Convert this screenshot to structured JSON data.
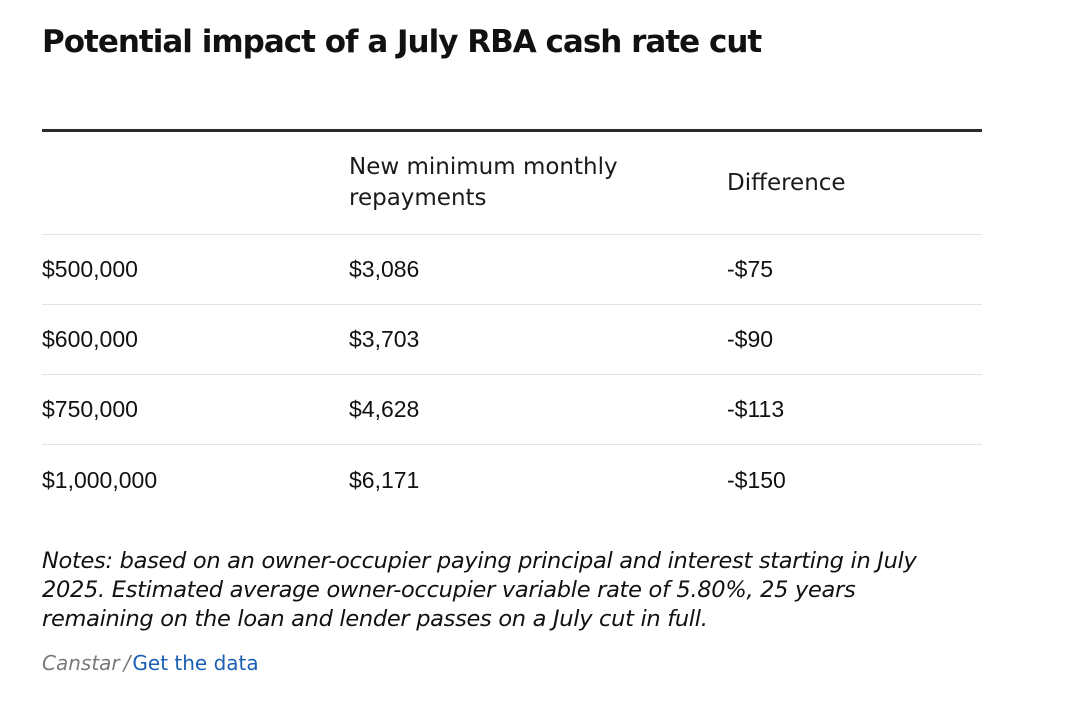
{
  "title": "Potential impact of a July RBA cash rate cut",
  "table": {
    "headers": [
      "",
      "New minimum monthly repayments",
      "Difference"
    ],
    "rows": [
      [
        "$500,000",
        "$3,086",
        "-$75"
      ],
      [
        "$600,000",
        "$3,703",
        "-$90"
      ],
      [
        "$750,000",
        "$4,628",
        "-$113"
      ],
      [
        "$1,000,000",
        "$6,171",
        "-$150"
      ]
    ]
  },
  "notes": "Notes: based on an owner-occupier paying principal and interest starting in July 2025. Estimated average owner-occupier variable rate of 5.80%, 25 years remaining on the loan and lender passes on a July cut in full.",
  "source": {
    "name": "Canstar",
    "separator": "/",
    "link_label": "Get the data"
  },
  "colors": {
    "text": "#111111",
    "rule": "#2b2b2b",
    "row_divider": "#e3e3e3",
    "source_gray": "#7a7a7a",
    "link_blue": "#1a5fb4"
  }
}
